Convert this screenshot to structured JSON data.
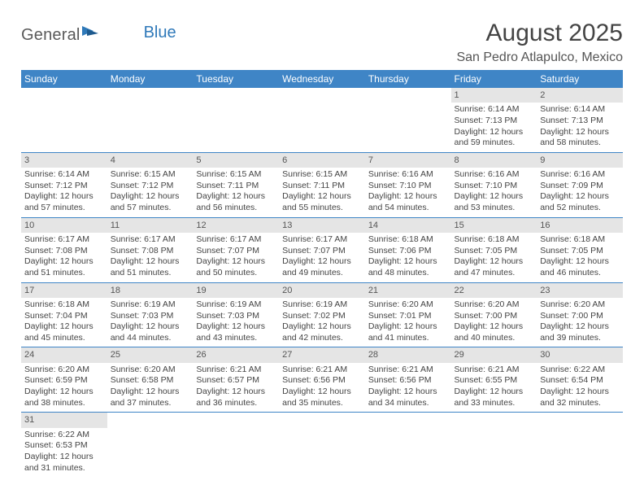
{
  "logo": {
    "general": "General",
    "blue": "Blue"
  },
  "header": {
    "title": "August 2025",
    "location": "San Pedro Atlapulco, Mexico"
  },
  "colors": {
    "header_bg": "#3f85c6",
    "header_text": "#ffffff",
    "daynum_bg": "#e5e5e5",
    "border": "#3f85c6",
    "logo_blue": "#2f79b9"
  },
  "weekdays": [
    "Sunday",
    "Monday",
    "Tuesday",
    "Wednesday",
    "Thursday",
    "Friday",
    "Saturday"
  ],
  "weeks": [
    [
      null,
      null,
      null,
      null,
      null,
      {
        "n": "1",
        "sr": "Sunrise: 6:14 AM",
        "ss": "Sunset: 7:13 PM",
        "d1": "Daylight: 12 hours",
        "d2": "and 59 minutes."
      },
      {
        "n": "2",
        "sr": "Sunrise: 6:14 AM",
        "ss": "Sunset: 7:13 PM",
        "d1": "Daylight: 12 hours",
        "d2": "and 58 minutes."
      }
    ],
    [
      {
        "n": "3",
        "sr": "Sunrise: 6:14 AM",
        "ss": "Sunset: 7:12 PM",
        "d1": "Daylight: 12 hours",
        "d2": "and 57 minutes."
      },
      {
        "n": "4",
        "sr": "Sunrise: 6:15 AM",
        "ss": "Sunset: 7:12 PM",
        "d1": "Daylight: 12 hours",
        "d2": "and 57 minutes."
      },
      {
        "n": "5",
        "sr": "Sunrise: 6:15 AM",
        "ss": "Sunset: 7:11 PM",
        "d1": "Daylight: 12 hours",
        "d2": "and 56 minutes."
      },
      {
        "n": "6",
        "sr": "Sunrise: 6:15 AM",
        "ss": "Sunset: 7:11 PM",
        "d1": "Daylight: 12 hours",
        "d2": "and 55 minutes."
      },
      {
        "n": "7",
        "sr": "Sunrise: 6:16 AM",
        "ss": "Sunset: 7:10 PM",
        "d1": "Daylight: 12 hours",
        "d2": "and 54 minutes."
      },
      {
        "n": "8",
        "sr": "Sunrise: 6:16 AM",
        "ss": "Sunset: 7:10 PM",
        "d1": "Daylight: 12 hours",
        "d2": "and 53 minutes."
      },
      {
        "n": "9",
        "sr": "Sunrise: 6:16 AM",
        "ss": "Sunset: 7:09 PM",
        "d1": "Daylight: 12 hours",
        "d2": "and 52 minutes."
      }
    ],
    [
      {
        "n": "10",
        "sr": "Sunrise: 6:17 AM",
        "ss": "Sunset: 7:08 PM",
        "d1": "Daylight: 12 hours",
        "d2": "and 51 minutes."
      },
      {
        "n": "11",
        "sr": "Sunrise: 6:17 AM",
        "ss": "Sunset: 7:08 PM",
        "d1": "Daylight: 12 hours",
        "d2": "and 51 minutes."
      },
      {
        "n": "12",
        "sr": "Sunrise: 6:17 AM",
        "ss": "Sunset: 7:07 PM",
        "d1": "Daylight: 12 hours",
        "d2": "and 50 minutes."
      },
      {
        "n": "13",
        "sr": "Sunrise: 6:17 AM",
        "ss": "Sunset: 7:07 PM",
        "d1": "Daylight: 12 hours",
        "d2": "and 49 minutes."
      },
      {
        "n": "14",
        "sr": "Sunrise: 6:18 AM",
        "ss": "Sunset: 7:06 PM",
        "d1": "Daylight: 12 hours",
        "d2": "and 48 minutes."
      },
      {
        "n": "15",
        "sr": "Sunrise: 6:18 AM",
        "ss": "Sunset: 7:05 PM",
        "d1": "Daylight: 12 hours",
        "d2": "and 47 minutes."
      },
      {
        "n": "16",
        "sr": "Sunrise: 6:18 AM",
        "ss": "Sunset: 7:05 PM",
        "d1": "Daylight: 12 hours",
        "d2": "and 46 minutes."
      }
    ],
    [
      {
        "n": "17",
        "sr": "Sunrise: 6:18 AM",
        "ss": "Sunset: 7:04 PM",
        "d1": "Daylight: 12 hours",
        "d2": "and 45 minutes."
      },
      {
        "n": "18",
        "sr": "Sunrise: 6:19 AM",
        "ss": "Sunset: 7:03 PM",
        "d1": "Daylight: 12 hours",
        "d2": "and 44 minutes."
      },
      {
        "n": "19",
        "sr": "Sunrise: 6:19 AM",
        "ss": "Sunset: 7:03 PM",
        "d1": "Daylight: 12 hours",
        "d2": "and 43 minutes."
      },
      {
        "n": "20",
        "sr": "Sunrise: 6:19 AM",
        "ss": "Sunset: 7:02 PM",
        "d1": "Daylight: 12 hours",
        "d2": "and 42 minutes."
      },
      {
        "n": "21",
        "sr": "Sunrise: 6:20 AM",
        "ss": "Sunset: 7:01 PM",
        "d1": "Daylight: 12 hours",
        "d2": "and 41 minutes."
      },
      {
        "n": "22",
        "sr": "Sunrise: 6:20 AM",
        "ss": "Sunset: 7:00 PM",
        "d1": "Daylight: 12 hours",
        "d2": "and 40 minutes."
      },
      {
        "n": "23",
        "sr": "Sunrise: 6:20 AM",
        "ss": "Sunset: 7:00 PM",
        "d1": "Daylight: 12 hours",
        "d2": "and 39 minutes."
      }
    ],
    [
      {
        "n": "24",
        "sr": "Sunrise: 6:20 AM",
        "ss": "Sunset: 6:59 PM",
        "d1": "Daylight: 12 hours",
        "d2": "and 38 minutes."
      },
      {
        "n": "25",
        "sr": "Sunrise: 6:20 AM",
        "ss": "Sunset: 6:58 PM",
        "d1": "Daylight: 12 hours",
        "d2": "and 37 minutes."
      },
      {
        "n": "26",
        "sr": "Sunrise: 6:21 AM",
        "ss": "Sunset: 6:57 PM",
        "d1": "Daylight: 12 hours",
        "d2": "and 36 minutes."
      },
      {
        "n": "27",
        "sr": "Sunrise: 6:21 AM",
        "ss": "Sunset: 6:56 PM",
        "d1": "Daylight: 12 hours",
        "d2": "and 35 minutes."
      },
      {
        "n": "28",
        "sr": "Sunrise: 6:21 AM",
        "ss": "Sunset: 6:56 PM",
        "d1": "Daylight: 12 hours",
        "d2": "and 34 minutes."
      },
      {
        "n": "29",
        "sr": "Sunrise: 6:21 AM",
        "ss": "Sunset: 6:55 PM",
        "d1": "Daylight: 12 hours",
        "d2": "and 33 minutes."
      },
      {
        "n": "30",
        "sr": "Sunrise: 6:22 AM",
        "ss": "Sunset: 6:54 PM",
        "d1": "Daylight: 12 hours",
        "d2": "and 32 minutes."
      }
    ],
    [
      {
        "n": "31",
        "sr": "Sunrise: 6:22 AM",
        "ss": "Sunset: 6:53 PM",
        "d1": "Daylight: 12 hours",
        "d2": "and 31 minutes."
      },
      null,
      null,
      null,
      null,
      null,
      null
    ]
  ]
}
